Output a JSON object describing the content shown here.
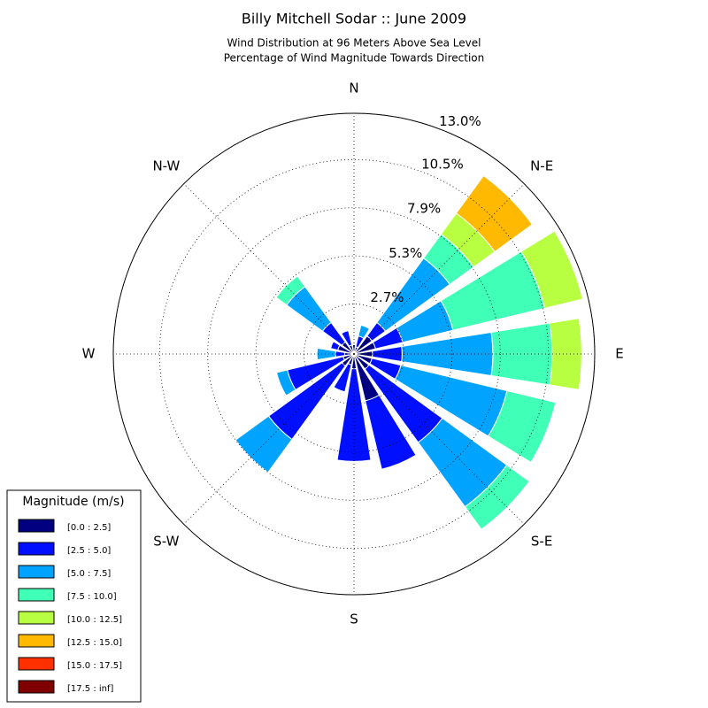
{
  "chart_data": {
    "type": "windrose",
    "title": "Billy Mitchell Sodar :: June 2009",
    "subtitle": [
      "Wind Distribution at 96 Meters Above Sea Level",
      "Percentage of Wind Magnitude Towards Direction"
    ],
    "directions": [
      "N",
      null,
      "N-E",
      null,
      "E",
      null,
      "S-E",
      null,
      "S",
      null,
      "S-W",
      null,
      "W",
      null,
      "N-W",
      null
    ],
    "rlim": [
      0,
      13.0
    ],
    "rticks": [
      {
        "value": 2.7,
        "label": "2.7%"
      },
      {
        "value": 5.3,
        "label": "5.3%"
      },
      {
        "value": 7.9,
        "label": "7.9%"
      },
      {
        "value": 10.5,
        "label": "10.5%"
      },
      {
        "value": 13.0,
        "label": "13.0%"
      }
    ],
    "grid": true,
    "legend_title": "Magnitude (m/s)",
    "legend_position": "lower left",
    "series": [
      {
        "name": "[0.0 : 2.5]",
        "color": "#000080",
        "values": [
          0.5,
          0.4,
          1.2,
          1.2,
          1.0,
          1.0,
          1.0,
          2.6,
          0.8,
          0.6,
          0.8,
          0.6,
          0.5,
          0.9,
          0.8,
          0.5
        ]
      },
      {
        "name": "[2.5 : 5.0]",
        "color": "#0010ff",
        "values": [
          0,
          0.6,
          0.9,
          1.5,
          1.6,
          1.6,
          4.9,
          3.8,
          5.0,
          1.5,
          4.9,
          3.1,
          0.5,
          0.4,
          1.3,
          0.8
        ]
      },
      {
        "name": "[5.0 : 7.5]",
        "color": "#00a4ff",
        "values": [
          0,
          0.6,
          4.3,
          2.8,
          4.9,
          5.9,
          4.3,
          0,
          0,
          0,
          2.2,
          0.6,
          1.0,
          0,
          2.4,
          0
        ]
      },
      {
        "name": "[7.5 : 10.0]",
        "color": "#40ffb7",
        "values": [
          0,
          0,
          1.6,
          5.1,
          3.2,
          2.7,
          1.5,
          0,
          0,
          0,
          0,
          0,
          0,
          0,
          0.7,
          0
        ]
      },
      {
        "name": "[10.0 : 12.5]",
        "color": "#b7ff40",
        "values": [
          0,
          0,
          1.4,
          2.1,
          1.6,
          0,
          0,
          0,
          0,
          0,
          0,
          0,
          0,
          0,
          0,
          0
        ]
      },
      {
        "name": "[12.5 : 15.0]",
        "color": "#ffb900",
        "values": [
          0,
          0,
          2.5,
          0,
          0,
          0,
          0,
          0,
          0,
          0,
          0,
          0,
          0,
          0,
          0,
          0
        ]
      },
      {
        "name": "[15.0 : 17.5]",
        "color": "#ff3000",
        "values": [
          0,
          0,
          0,
          0,
          0,
          0,
          0,
          0,
          0,
          0,
          0,
          0,
          0,
          0,
          0,
          0
        ]
      },
      {
        "name": "[17.5 : inf]",
        "color": "#800000",
        "values": [
          0,
          0,
          0,
          0,
          0,
          0,
          0,
          0,
          0,
          0,
          0,
          0,
          0,
          0,
          0,
          0
        ]
      }
    ]
  }
}
